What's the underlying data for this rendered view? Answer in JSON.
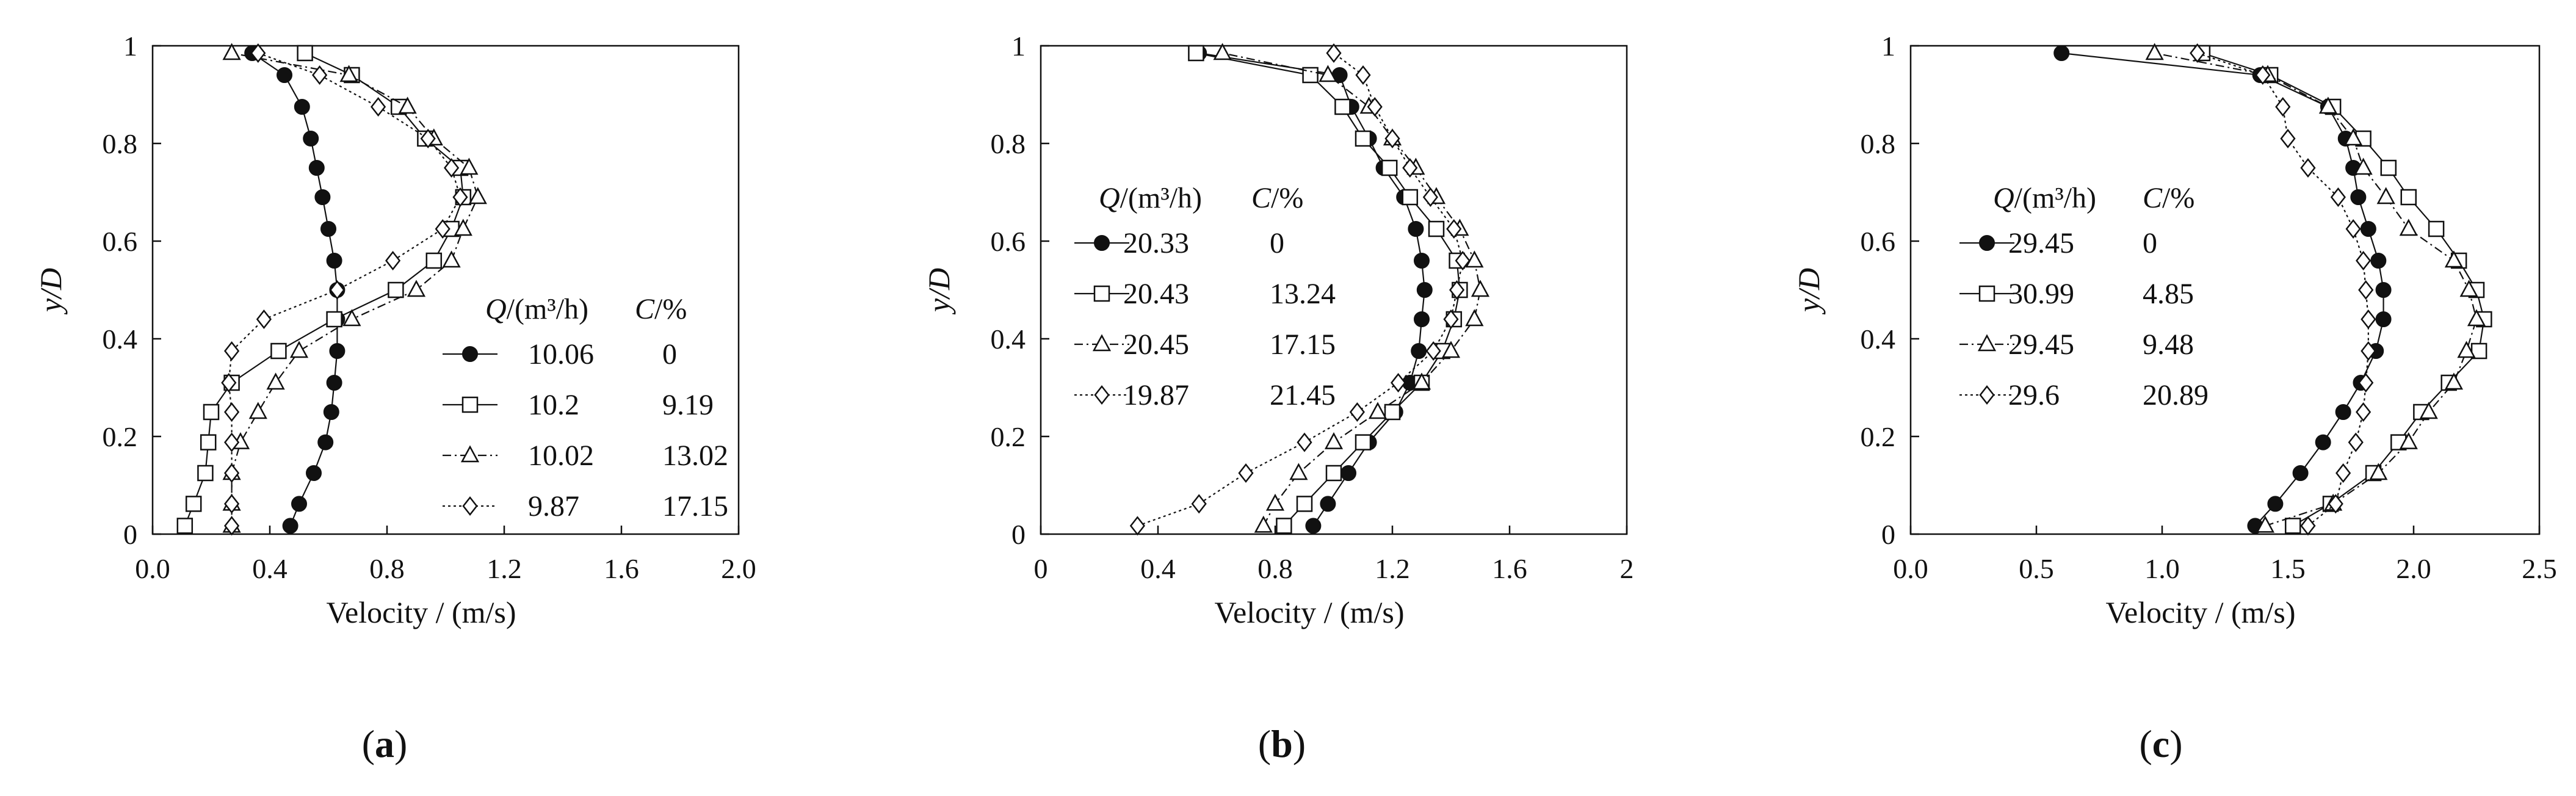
{
  "figure": {
    "background": "#ffffff",
    "ink": "#111111"
  },
  "chart_data": [
    {
      "type": "line",
      "panel": "a",
      "xlabel": "Velocity / (m/s)",
      "ylabel": "y/D",
      "xlim": [
        0,
        2.0
      ],
      "ylim": [
        0,
        1
      ],
      "xticks": [
        "0.0",
        "0.4",
        "0.8",
        "1.2",
        "1.6",
        "2.0"
      ],
      "yticks": [
        "0",
        "0.2",
        "0.4",
        "0.6",
        "0.8",
        "1"
      ],
      "legend": {
        "position": "middle-right",
        "header": {
          "q_sym": "Q",
          "q_unit": "/(m³/h)",
          "c_sym": "C",
          "c_unit": "/%"
        }
      },
      "series": [
        {
          "marker": "filled-circle",
          "line": "solid",
          "q": "10.06",
          "c": "0",
          "points": [
            [
              0.47,
              0.017
            ],
            [
              0.5,
              0.062
            ],
            [
              0.55,
              0.125
            ],
            [
              0.59,
              0.188
            ],
            [
              0.61,
              0.25
            ],
            [
              0.62,
              0.31
            ],
            [
              0.63,
              0.375
            ],
            [
              0.63,
              0.44
            ],
            [
              0.63,
              0.5
            ],
            [
              0.62,
              0.56
            ],
            [
              0.6,
              0.625
            ],
            [
              0.58,
              0.69
            ],
            [
              0.56,
              0.75
            ],
            [
              0.54,
              0.81
            ],
            [
              0.51,
              0.875
            ],
            [
              0.45,
              0.94
            ],
            [
              0.34,
              0.985
            ]
          ]
        },
        {
          "marker": "open-square",
          "line": "solid",
          "q": "10.2",
          "c": "9.19",
          "points": [
            [
              0.11,
              0.017
            ],
            [
              0.14,
              0.062
            ],
            [
              0.18,
              0.125
            ],
            [
              0.19,
              0.188
            ],
            [
              0.2,
              0.25
            ],
            [
              0.27,
              0.31
            ],
            [
              0.43,
              0.375
            ],
            [
              0.62,
              0.44
            ],
            [
              0.83,
              0.5
            ],
            [
              0.96,
              0.56
            ],
            [
              1.02,
              0.625
            ],
            [
              1.06,
              0.69
            ],
            [
              1.05,
              0.75
            ],
            [
              0.93,
              0.81
            ],
            [
              0.84,
              0.875
            ],
            [
              0.68,
              0.94
            ],
            [
              0.52,
              0.985
            ]
          ]
        },
        {
          "marker": "open-triangle",
          "line": "dash-dot",
          "q": "10.02",
          "c": "13.02",
          "points": [
            [
              0.27,
              0.017
            ],
            [
              0.27,
              0.062
            ],
            [
              0.27,
              0.125
            ],
            [
              0.3,
              0.188
            ],
            [
              0.36,
              0.25
            ],
            [
              0.42,
              0.31
            ],
            [
              0.5,
              0.375
            ],
            [
              0.68,
              0.44
            ],
            [
              0.9,
              0.5
            ],
            [
              1.02,
              0.56
            ],
            [
              1.06,
              0.625
            ],
            [
              1.11,
              0.69
            ],
            [
              1.08,
              0.75
            ],
            [
              0.96,
              0.81
            ],
            [
              0.87,
              0.875
            ],
            [
              0.67,
              0.94
            ],
            [
              0.27,
              0.985
            ]
          ]
        },
        {
          "marker": "open-diamond",
          "line": "dotted",
          "q": "9.87",
          "c": "17.15",
          "points": [
            [
              0.27,
              0.017
            ],
            [
              0.27,
              0.062
            ],
            [
              0.27,
              0.125
            ],
            [
              0.27,
              0.188
            ],
            [
              0.27,
              0.25
            ],
            [
              0.26,
              0.31
            ],
            [
              0.27,
              0.375
            ],
            [
              0.38,
              0.44
            ],
            [
              0.63,
              0.5
            ],
            [
              0.82,
              0.56
            ],
            [
              0.99,
              0.625
            ],
            [
              1.05,
              0.69
            ],
            [
              1.02,
              0.75
            ],
            [
              0.94,
              0.81
            ],
            [
              0.77,
              0.875
            ],
            [
              0.57,
              0.94
            ],
            [
              0.36,
              0.985
            ]
          ]
        }
      ]
    },
    {
      "type": "line",
      "panel": "b",
      "xlabel": "Velocity / (m/s)",
      "ylabel": "y/D",
      "xlim": [
        0,
        2
      ],
      "ylim": [
        0,
        1
      ],
      "xticks": [
        "0",
        "0.4",
        "0.8",
        "1.2",
        "1.6",
        "2"
      ],
      "yticks": [
        "0",
        "0.2",
        "0.4",
        "0.6",
        "0.8",
        "1"
      ],
      "legend": {
        "position": "middle-left",
        "header": {
          "q_sym": "Q",
          "q_unit": "/(m³/h)",
          "c_sym": "C",
          "c_unit": "/%"
        }
      },
      "series": [
        {
          "marker": "filled-circle",
          "line": "solid",
          "q": "20.33",
          "c": "0",
          "points": [
            [
              0.93,
              0.017
            ],
            [
              0.98,
              0.062
            ],
            [
              1.05,
              0.125
            ],
            [
              1.12,
              0.188
            ],
            [
              1.21,
              0.25
            ],
            [
              1.26,
              0.31
            ],
            [
              1.29,
              0.375
            ],
            [
              1.3,
              0.44
            ],
            [
              1.31,
              0.5
            ],
            [
              1.3,
              0.56
            ],
            [
              1.28,
              0.625
            ],
            [
              1.24,
              0.69
            ],
            [
              1.17,
              0.75
            ],
            [
              1.12,
              0.81
            ],
            [
              1.06,
              0.875
            ],
            [
              1.02,
              0.94
            ],
            [
              0.54,
              0.985
            ]
          ]
        },
        {
          "marker": "open-square",
          "line": "solid",
          "q": "20.43",
          "c": "13.24",
          "points": [
            [
              0.83,
              0.017
            ],
            [
              0.9,
              0.062
            ],
            [
              1.0,
              0.125
            ],
            [
              1.1,
              0.188
            ],
            [
              1.2,
              0.25
            ],
            [
              1.3,
              0.31
            ],
            [
              1.37,
              0.375
            ],
            [
              1.41,
              0.44
            ],
            [
              1.43,
              0.5
            ],
            [
              1.42,
              0.56
            ],
            [
              1.35,
              0.625
            ],
            [
              1.26,
              0.69
            ],
            [
              1.19,
              0.75
            ],
            [
              1.1,
              0.81
            ],
            [
              1.03,
              0.875
            ],
            [
              0.92,
              0.94
            ],
            [
              0.53,
              0.985
            ]
          ]
        },
        {
          "marker": "open-triangle",
          "line": "dash-dot",
          "q": "20.45",
          "c": "17.15",
          "points": [
            [
              0.76,
              0.017
            ],
            [
              0.8,
              0.062
            ],
            [
              0.88,
              0.125
            ],
            [
              1.0,
              0.188
            ],
            [
              1.15,
              0.25
            ],
            [
              1.3,
              0.31
            ],
            [
              1.4,
              0.375
            ],
            [
              1.48,
              0.44
            ],
            [
              1.5,
              0.5
            ],
            [
              1.48,
              0.56
            ],
            [
              1.43,
              0.625
            ],
            [
              1.35,
              0.69
            ],
            [
              1.28,
              0.75
            ],
            [
              1.2,
              0.81
            ],
            [
              1.12,
              0.875
            ],
            [
              0.98,
              0.94
            ],
            [
              0.62,
              0.985
            ]
          ]
        },
        {
          "marker": "open-diamond",
          "line": "dotted",
          "q": "19.87",
          "c": "21.45",
          "points": [
            [
              0.33,
              0.017
            ],
            [
              0.54,
              0.062
            ],
            [
              0.7,
              0.125
            ],
            [
              0.9,
              0.188
            ],
            [
              1.08,
              0.25
            ],
            [
              1.22,
              0.31
            ],
            [
              1.34,
              0.375
            ],
            [
              1.4,
              0.44
            ],
            [
              1.42,
              0.5
            ],
            [
              1.44,
              0.56
            ],
            [
              1.41,
              0.625
            ],
            [
              1.33,
              0.69
            ],
            [
              1.26,
              0.75
            ],
            [
              1.2,
              0.81
            ],
            [
              1.14,
              0.875
            ],
            [
              1.1,
              0.94
            ],
            [
              1.0,
              0.985
            ]
          ]
        }
      ]
    },
    {
      "type": "line",
      "panel": "c",
      "xlabel": "Velocity / (m/s)",
      "ylabel": "y/D",
      "xlim": [
        0,
        2.5
      ],
      "ylim": [
        0,
        1
      ],
      "xticks": [
        "0.0",
        "0.5",
        "1.0",
        "1.5",
        "2.0",
        "2.5"
      ],
      "yticks": [
        "0",
        "0.2",
        "0.4",
        "0.6",
        "0.8",
        "1"
      ],
      "legend": {
        "position": "middle-left",
        "header": {
          "q_sym": "Q",
          "q_unit": "/(m³/h)",
          "c_sym": "C",
          "c_unit": "/%"
        }
      },
      "series": [
        {
          "marker": "filled-circle",
          "line": "solid",
          "q": "29.45",
          "c": "0",
          "points": [
            [
              1.37,
              0.017
            ],
            [
              1.45,
              0.062
            ],
            [
              1.55,
              0.125
            ],
            [
              1.64,
              0.188
            ],
            [
              1.72,
              0.25
            ],
            [
              1.79,
              0.31
            ],
            [
              1.85,
              0.375
            ],
            [
              1.88,
              0.44
            ],
            [
              1.88,
              0.5
            ],
            [
              1.86,
              0.56
            ],
            [
              1.82,
              0.625
            ],
            [
              1.78,
              0.69
            ],
            [
              1.76,
              0.75
            ],
            [
              1.73,
              0.81
            ],
            [
              1.66,
              0.875
            ],
            [
              1.39,
              0.94
            ],
            [
              0.6,
              0.985
            ]
          ]
        },
        {
          "marker": "open-square",
          "line": "solid",
          "q": "30.99",
          "c": "4.85",
          "points": [
            [
              1.52,
              0.017
            ],
            [
              1.67,
              0.062
            ],
            [
              1.84,
              0.125
            ],
            [
              1.94,
              0.188
            ],
            [
              2.03,
              0.25
            ],
            [
              2.14,
              0.31
            ],
            [
              2.26,
              0.375
            ],
            [
              2.28,
              0.44
            ],
            [
              2.25,
              0.5
            ],
            [
              2.18,
              0.56
            ],
            [
              2.09,
              0.625
            ],
            [
              1.98,
              0.69
            ],
            [
              1.9,
              0.75
            ],
            [
              1.8,
              0.81
            ],
            [
              1.68,
              0.875
            ],
            [
              1.43,
              0.94
            ],
            [
              1.16,
              0.985
            ]
          ]
        },
        {
          "marker": "open-triangle",
          "line": "dash-dot",
          "q": "29.45",
          "c": "9.48",
          "points": [
            [
              1.41,
              0.017
            ],
            [
              1.68,
              0.062
            ],
            [
              1.86,
              0.125
            ],
            [
              1.98,
              0.188
            ],
            [
              2.06,
              0.25
            ],
            [
              2.16,
              0.31
            ],
            [
              2.21,
              0.375
            ],
            [
              2.25,
              0.44
            ],
            [
              2.22,
              0.5
            ],
            [
              2.16,
              0.56
            ],
            [
              1.98,
              0.625
            ],
            [
              1.89,
              0.69
            ],
            [
              1.8,
              0.75
            ],
            [
              1.76,
              0.81
            ],
            [
              1.66,
              0.875
            ],
            [
              1.42,
              0.94
            ],
            [
              0.97,
              0.985
            ]
          ]
        },
        {
          "marker": "open-diamond",
          "line": "dotted",
          "q": "29.6",
          "c": "20.89",
          "points": [
            [
              1.58,
              0.017
            ],
            [
              1.69,
              0.062
            ],
            [
              1.72,
              0.125
            ],
            [
              1.77,
              0.188
            ],
            [
              1.8,
              0.25
            ],
            [
              1.81,
              0.31
            ],
            [
              1.82,
              0.375
            ],
            [
              1.82,
              0.44
            ],
            [
              1.81,
              0.5
            ],
            [
              1.8,
              0.56
            ],
            [
              1.76,
              0.625
            ],
            [
              1.7,
              0.69
            ],
            [
              1.58,
              0.75
            ],
            [
              1.5,
              0.81
            ],
            [
              1.48,
              0.875
            ],
            [
              1.4,
              0.94
            ],
            [
              1.14,
              0.985
            ]
          ]
        }
      ]
    }
  ],
  "captions": [
    {
      "open": "(",
      "letter": "a",
      "close": ")"
    },
    {
      "open": "(",
      "letter": "b",
      "close": ")"
    },
    {
      "open": "(",
      "letter": "c",
      "close": ")"
    }
  ]
}
